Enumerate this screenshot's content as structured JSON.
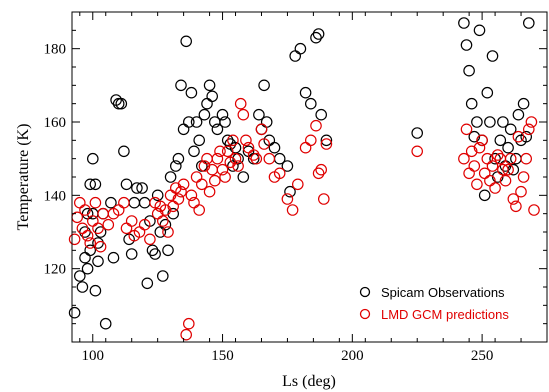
{
  "chart_data": {
    "type": "scatter",
    "xlabel": "Ls (deg)",
    "ylabel": "Temperature (K)",
    "xlim": [
      92,
      275
    ],
    "ylim": [
      100,
      190
    ],
    "x_ticks": [
      "100",
      "150",
      "200",
      "250"
    ],
    "x_tick_values": [
      100,
      150,
      200,
      250
    ],
    "y_ticks": [
      "120",
      "140",
      "160",
      "180"
    ],
    "y_tick_values": [
      120,
      140,
      160,
      180
    ],
    "legend_position": "bottom-right",
    "series": [
      {
        "name": "Spicam Observations",
        "color": "#000000",
        "marker": "open-circle",
        "points": [
          [
            93,
            108
          ],
          [
            95,
            118
          ],
          [
            96,
            115
          ],
          [
            97,
            123
          ],
          [
            97,
            130
          ],
          [
            98,
            120
          ],
          [
            98,
            135
          ],
          [
            99,
            125
          ],
          [
            99,
            143
          ],
          [
            100,
            150
          ],
          [
            100,
            135
          ],
          [
            101,
            143
          ],
          [
            101,
            114
          ],
          [
            102,
            122
          ],
          [
            102,
            127
          ],
          [
            103,
            130
          ],
          [
            104,
            135
          ],
          [
            105,
            105
          ],
          [
            107,
            138
          ],
          [
            108,
            123
          ],
          [
            109,
            166
          ],
          [
            110,
            165
          ],
          [
            111,
            165
          ],
          [
            112,
            152
          ],
          [
            113,
            143
          ],
          [
            114,
            128
          ],
          [
            115,
            124
          ],
          [
            116,
            138
          ],
          [
            117,
            142
          ],
          [
            119,
            142
          ],
          [
            120,
            138
          ],
          [
            121,
            116
          ],
          [
            122,
            133
          ],
          [
            123,
            125
          ],
          [
            124,
            124
          ],
          [
            125,
            140
          ],
          [
            126,
            130
          ],
          [
            127,
            118
          ],
          [
            128,
            132
          ],
          [
            129,
            125
          ],
          [
            130,
            145
          ],
          [
            131,
            135
          ],
          [
            132,
            148
          ],
          [
            133,
            150
          ],
          [
            134,
            170
          ],
          [
            135,
            158
          ],
          [
            136,
            182
          ],
          [
            137,
            160
          ],
          [
            138,
            168
          ],
          [
            139,
            152
          ],
          [
            140,
            160
          ],
          [
            141,
            155
          ],
          [
            142,
            148
          ],
          [
            143,
            162
          ],
          [
            144,
            165
          ],
          [
            145,
            170
          ],
          [
            146,
            167
          ],
          [
            147,
            160
          ],
          [
            148,
            158
          ],
          [
            150,
            162
          ],
          [
            151,
            160
          ],
          [
            152,
            155
          ],
          [
            153,
            154
          ],
          [
            154,
            148
          ],
          [
            155,
            153
          ],
          [
            156,
            150
          ],
          [
            158,
            145
          ],
          [
            160,
            152
          ],
          [
            162,
            150
          ],
          [
            164,
            162
          ],
          [
            165,
            158
          ],
          [
            166,
            170
          ],
          [
            167,
            160
          ],
          [
            168,
            155
          ],
          [
            170,
            153
          ],
          [
            172,
            150
          ],
          [
            175,
            148
          ],
          [
            176,
            141
          ],
          [
            178,
            178
          ],
          [
            180,
            180
          ],
          [
            182,
            168
          ],
          [
            184,
            165
          ],
          [
            186,
            183
          ],
          [
            187,
            184
          ],
          [
            188,
            162
          ],
          [
            190,
            155
          ],
          [
            225,
            157
          ],
          [
            243,
            187
          ],
          [
            244,
            181
          ],
          [
            245,
            174
          ],
          [
            246,
            165
          ],
          [
            247,
            156
          ],
          [
            248,
            160
          ],
          [
            249,
            185
          ],
          [
            250,
            155
          ],
          [
            251,
            140
          ],
          [
            252,
            168
          ],
          [
            253,
            160
          ],
          [
            254,
            178
          ],
          [
            255,
            150
          ],
          [
            256,
            145
          ],
          [
            257,
            155
          ],
          [
            258,
            160
          ],
          [
            259,
            148
          ],
          [
            260,
            153
          ],
          [
            261,
            158
          ],
          [
            262,
            147
          ],
          [
            263,
            150
          ],
          [
            264,
            162
          ],
          [
            265,
            155
          ],
          [
            266,
            165
          ],
          [
            267,
            156
          ],
          [
            268,
            187
          ]
        ]
      },
      {
        "name": "LMD GCM predictions",
        "color": "#e00000",
        "marker": "open-circle",
        "points": [
          [
            93,
            128
          ],
          [
            94,
            134
          ],
          [
            95,
            138
          ],
          [
            96,
            131
          ],
          [
            97,
            136
          ],
          [
            98,
            129
          ],
          [
            99,
            127
          ],
          [
            100,
            133
          ],
          [
            101,
            138
          ],
          [
            102,
            131
          ],
          [
            103,
            126
          ],
          [
            104,
            135
          ],
          [
            106,
            132
          ],
          [
            108,
            135
          ],
          [
            110,
            136
          ],
          [
            112,
            138
          ],
          [
            113,
            131
          ],
          [
            115,
            133
          ],
          [
            116,
            129
          ],
          [
            118,
            130
          ],
          [
            120,
            132
          ],
          [
            122,
            128
          ],
          [
            124,
            138
          ],
          [
            125,
            135
          ],
          [
            126,
            137
          ],
          [
            127,
            133
          ],
          [
            128,
            136
          ],
          [
            129,
            130
          ],
          [
            130,
            140
          ],
          [
            131,
            137
          ],
          [
            132,
            142
          ],
          [
            133,
            139
          ],
          [
            134,
            141
          ],
          [
            135,
            143
          ],
          [
            136,
            102
          ],
          [
            137,
            105
          ],
          [
            138,
            140
          ],
          [
            139,
            138
          ],
          [
            140,
            145
          ],
          [
            141,
            136
          ],
          [
            142,
            143
          ],
          [
            143,
            148
          ],
          [
            144,
            150
          ],
          [
            145,
            141
          ],
          [
            146,
            147
          ],
          [
            147,
            144
          ],
          [
            148,
            150
          ],
          [
            149,
            152
          ],
          [
            150,
            147
          ],
          [
            151,
            145
          ],
          [
            152,
            152
          ],
          [
            153,
            149
          ],
          [
            154,
            155
          ],
          [
            155,
            150
          ],
          [
            156,
            148
          ],
          [
            157,
            165
          ],
          [
            158,
            162
          ],
          [
            159,
            155
          ],
          [
            160,
            153
          ],
          [
            162,
            151
          ],
          [
            163,
            150
          ],
          [
            165,
            158
          ],
          [
            166,
            154
          ],
          [
            168,
            150
          ],
          [
            170,
            145
          ],
          [
            172,
            146
          ],
          [
            175,
            139
          ],
          [
            177,
            136
          ],
          [
            179,
            143
          ],
          [
            182,
            153
          ],
          [
            184,
            155
          ],
          [
            186,
            159
          ],
          [
            187,
            146
          ],
          [
            188,
            147
          ],
          [
            189,
            139
          ],
          [
            190,
            154
          ],
          [
            225,
            152
          ],
          [
            243,
            150
          ],
          [
            244,
            158
          ],
          [
            245,
            146
          ],
          [
            246,
            152
          ],
          [
            247,
            148
          ],
          [
            248,
            143
          ],
          [
            249,
            153
          ],
          [
            250,
            155
          ],
          [
            251,
            146
          ],
          [
            252,
            150
          ],
          [
            253,
            144
          ],
          [
            254,
            148
          ],
          [
            255,
            142
          ],
          [
            256,
            151
          ],
          [
            257,
            150
          ],
          [
            258,
            147
          ],
          [
            259,
            144
          ],
          [
            260,
            147
          ],
          [
            261,
            150
          ],
          [
            262,
            139
          ],
          [
            263,
            137
          ],
          [
            264,
            156
          ],
          [
            265,
            141
          ],
          [
            266,
            145
          ],
          [
            267,
            150
          ],
          [
            268,
            158
          ],
          [
            269,
            160
          ],
          [
            270,
            136
          ]
        ]
      }
    ]
  }
}
